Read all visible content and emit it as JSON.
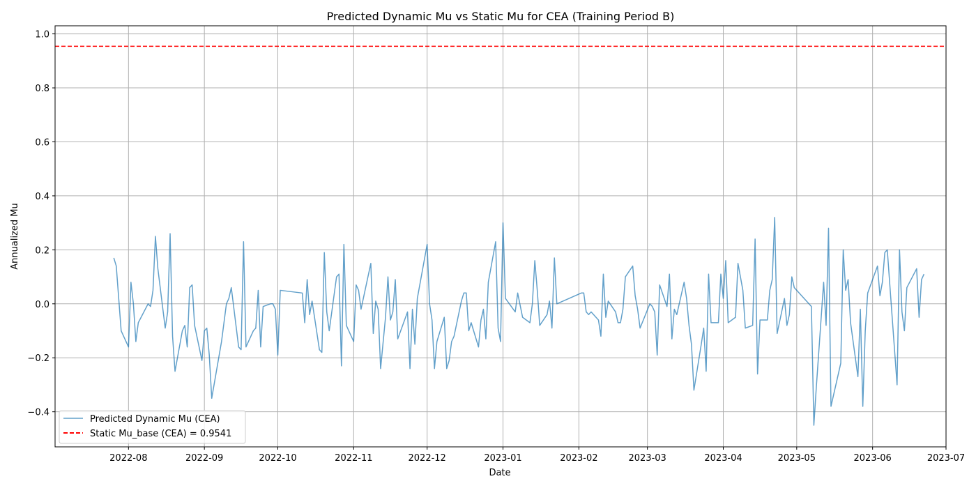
{
  "chart_data": {
    "type": "line",
    "title": "Predicted Dynamic Mu vs Static Mu for CEA (Training Period B)",
    "xlabel": "Date",
    "ylabel": "Annualized Mu",
    "xlim": [
      "2022-07-02",
      "2023-07-01"
    ],
    "ylim": [
      -0.53,
      1.03
    ],
    "grid": true,
    "legend_position": "lower-left",
    "x_ticks": [
      "2022-08",
      "2022-09",
      "2022-10",
      "2022-11",
      "2022-12",
      "2023-01",
      "2023-02",
      "2023-03",
      "2023-04",
      "2023-05",
      "2023-06",
      "2023-07"
    ],
    "y_ticks": [
      "−0.4",
      "−0.2",
      "0.0",
      "0.2",
      "0.4",
      "0.6",
      "0.8",
      "1.0"
    ],
    "y_tick_values": [
      -0.4,
      -0.2,
      0.0,
      0.2,
      0.4,
      0.6,
      0.8,
      1.0
    ],
    "series": [
      {
        "name": "Predicted Dynamic Mu (CEA)",
        "color": "#1f77b4",
        "style": "solid",
        "points": [
          [
            "2022-07-26",
            0.17
          ],
          [
            "2022-07-27",
            0.14
          ],
          [
            "2022-07-29",
            -0.1
          ],
          [
            "2022-08-01",
            -0.16
          ],
          [
            "2022-08-02",
            0.08
          ],
          [
            "2022-08-03",
            0.0
          ],
          [
            "2022-08-04",
            -0.14
          ],
          [
            "2022-08-05",
            -0.07
          ],
          [
            "2022-08-09",
            -0.0
          ],
          [
            "2022-08-10",
            -0.01
          ],
          [
            "2022-08-11",
            0.05
          ],
          [
            "2022-08-12",
            0.25
          ],
          [
            "2022-08-13",
            0.13
          ],
          [
            "2022-08-16",
            -0.09
          ],
          [
            "2022-08-17",
            -0.03
          ],
          [
            "2022-08-18",
            0.26
          ],
          [
            "2022-08-19",
            -0.12
          ],
          [
            "2022-08-20",
            -0.25
          ],
          [
            "2022-08-23",
            -0.1
          ],
          [
            "2022-08-24",
            -0.08
          ],
          [
            "2022-08-25",
            -0.16
          ],
          [
            "2022-08-26",
            0.06
          ],
          [
            "2022-08-27",
            0.07
          ],
          [
            "2022-08-28",
            -0.08
          ],
          [
            "2022-08-31",
            -0.21
          ],
          [
            "2022-09-01",
            -0.1
          ],
          [
            "2022-09-02",
            -0.09
          ],
          [
            "2022-09-03",
            -0.19
          ],
          [
            "2022-09-04",
            -0.35
          ],
          [
            "2022-09-08",
            -0.14
          ],
          [
            "2022-09-10",
            0.0
          ],
          [
            "2022-09-11",
            0.02
          ],
          [
            "2022-09-12",
            0.06
          ],
          [
            "2022-09-15",
            -0.16
          ],
          [
            "2022-09-16",
            -0.17
          ],
          [
            "2022-09-17",
            0.23
          ],
          [
            "2022-09-18",
            -0.16
          ],
          [
            "2022-09-21",
            -0.1
          ],
          [
            "2022-09-22",
            -0.09
          ],
          [
            "2022-09-23",
            0.05
          ],
          [
            "2022-09-24",
            -0.16
          ],
          [
            "2022-09-25",
            -0.01
          ],
          [
            "2022-09-28",
            0.0
          ],
          [
            "2022-09-29",
            0.0
          ],
          [
            "2022-09-30",
            -0.02
          ],
          [
            "2022-10-01",
            -0.19
          ],
          [
            "2022-10-02",
            0.05
          ],
          [
            "2022-10-11",
            0.04
          ],
          [
            "2022-10-12",
            -0.07
          ],
          [
            "2022-10-13",
            0.09
          ],
          [
            "2022-10-14",
            -0.04
          ],
          [
            "2022-10-15",
            0.01
          ],
          [
            "2022-10-16",
            -0.05
          ],
          [
            "2022-10-18",
            -0.17
          ],
          [
            "2022-10-19",
            -0.18
          ],
          [
            "2022-10-20",
            0.19
          ],
          [
            "2022-10-21",
            -0.03
          ],
          [
            "2022-10-22",
            -0.1
          ],
          [
            "2022-10-25",
            0.1
          ],
          [
            "2022-10-26",
            0.11
          ],
          [
            "2022-10-27",
            -0.23
          ],
          [
            "2022-10-28",
            0.22
          ],
          [
            "2022-10-29",
            -0.08
          ],
          [
            "2022-11-01",
            -0.14
          ],
          [
            "2022-11-02",
            0.07
          ],
          [
            "2022-11-03",
            0.05
          ],
          [
            "2022-11-04",
            -0.02
          ],
          [
            "2022-11-08",
            0.15
          ],
          [
            "2022-11-09",
            -0.11
          ],
          [
            "2022-11-10",
            0.01
          ],
          [
            "2022-11-11",
            -0.02
          ],
          [
            "2022-11-12",
            -0.24
          ],
          [
            "2022-11-14",
            -0.05
          ],
          [
            "2022-11-15",
            0.1
          ],
          [
            "2022-11-16",
            -0.06
          ],
          [
            "2022-11-17",
            -0.03
          ],
          [
            "2022-11-18",
            0.09
          ],
          [
            "2022-11-19",
            -0.13
          ],
          [
            "2022-11-23",
            -0.03
          ],
          [
            "2022-11-24",
            -0.24
          ],
          [
            "2022-11-25",
            -0.02
          ],
          [
            "2022-11-26",
            -0.15
          ],
          [
            "2022-11-27",
            0.02
          ],
          [
            "2022-12-01",
            0.22
          ],
          [
            "2022-12-02",
            0.0
          ],
          [
            "2022-12-03",
            -0.06
          ],
          [
            "2022-12-04",
            -0.24
          ],
          [
            "2022-12-05",
            -0.14
          ],
          [
            "2022-12-08",
            -0.05
          ],
          [
            "2022-12-09",
            -0.24
          ],
          [
            "2022-12-10",
            -0.21
          ],
          [
            "2022-12-11",
            -0.14
          ],
          [
            "2022-12-12",
            -0.12
          ],
          [
            "2022-12-15",
            0.01
          ],
          [
            "2022-12-16",
            0.04
          ],
          [
            "2022-12-17",
            0.04
          ],
          [
            "2022-12-18",
            -0.1
          ],
          [
            "2022-12-19",
            -0.07
          ],
          [
            "2022-12-22",
            -0.16
          ],
          [
            "2022-12-23",
            -0.06
          ],
          [
            "2022-12-24",
            -0.02
          ],
          [
            "2022-12-25",
            -0.13
          ],
          [
            "2022-12-26",
            0.08
          ],
          [
            "2022-12-29",
            0.23
          ],
          [
            "2022-12-30",
            -0.09
          ],
          [
            "2022-12-31",
            -0.14
          ],
          [
            "2023-01-01",
            0.3
          ],
          [
            "2023-01-02",
            0.02
          ],
          [
            "2023-01-06",
            -0.03
          ],
          [
            "2023-01-07",
            0.04
          ],
          [
            "2023-01-09",
            -0.05
          ],
          [
            "2023-01-12",
            -0.07
          ],
          [
            "2023-01-13",
            0.0
          ],
          [
            "2023-01-14",
            0.16
          ],
          [
            "2023-01-15",
            0.05
          ],
          [
            "2023-01-16",
            -0.08
          ],
          [
            "2023-01-19",
            -0.04
          ],
          [
            "2023-01-20",
            0.01
          ],
          [
            "2023-01-21",
            -0.09
          ],
          [
            "2023-01-22",
            0.17
          ],
          [
            "2023-01-23",
            0.0
          ],
          [
            "2023-02-02",
            0.04
          ],
          [
            "2023-02-03",
            0.04
          ],
          [
            "2023-02-04",
            -0.03
          ],
          [
            "2023-02-05",
            -0.04
          ],
          [
            "2023-02-06",
            -0.03
          ],
          [
            "2023-02-09",
            -0.06
          ],
          [
            "2023-02-10",
            -0.12
          ],
          [
            "2023-02-11",
            0.11
          ],
          [
            "2023-02-12",
            -0.05
          ],
          [
            "2023-02-13",
            0.01
          ],
          [
            "2023-02-16",
            -0.03
          ],
          [
            "2023-02-17",
            -0.07
          ],
          [
            "2023-02-18",
            -0.07
          ],
          [
            "2023-02-19",
            -0.02
          ],
          [
            "2023-02-20",
            0.1
          ],
          [
            "2023-02-23",
            0.14
          ],
          [
            "2023-02-24",
            0.03
          ],
          [
            "2023-02-25",
            -0.02
          ],
          [
            "2023-02-26",
            -0.09
          ],
          [
            "2023-03-02",
            0.0
          ],
          [
            "2023-03-03",
            -0.01
          ],
          [
            "2023-03-04",
            -0.03
          ],
          [
            "2023-03-05",
            -0.19
          ],
          [
            "2023-03-06",
            0.07
          ],
          [
            "2023-03-09",
            -0.01
          ],
          [
            "2023-03-10",
            0.11
          ],
          [
            "2023-03-11",
            -0.13
          ],
          [
            "2023-03-12",
            -0.02
          ],
          [
            "2023-03-13",
            -0.04
          ],
          [
            "2023-03-16",
            0.08
          ],
          [
            "2023-03-17",
            0.02
          ],
          [
            "2023-03-18",
            -0.08
          ],
          [
            "2023-03-19",
            -0.15
          ],
          [
            "2023-03-20",
            -0.32
          ],
          [
            "2023-03-23",
            -0.15
          ],
          [
            "2023-03-24",
            -0.09
          ],
          [
            "2023-03-25",
            -0.25
          ],
          [
            "2023-03-26",
            0.11
          ],
          [
            "2023-03-27",
            -0.07
          ],
          [
            "2023-03-30",
            -0.07
          ],
          [
            "2023-03-31",
            0.11
          ],
          [
            "2023-04-01",
            0.02
          ],
          [
            "2023-04-02",
            0.16
          ],
          [
            "2023-04-03",
            -0.07
          ],
          [
            "2023-04-06",
            -0.05
          ],
          [
            "2023-04-07",
            0.15
          ],
          [
            "2023-04-09",
            0.05
          ],
          [
            "2023-04-10",
            -0.09
          ],
          [
            "2023-04-13",
            -0.08
          ],
          [
            "2023-04-14",
            0.24
          ],
          [
            "2023-04-15",
            -0.26
          ],
          [
            "2023-04-16",
            -0.06
          ],
          [
            "2023-04-19",
            -0.06
          ],
          [
            "2023-04-20",
            0.05
          ],
          [
            "2023-04-21",
            0.09
          ],
          [
            "2023-04-22",
            0.32
          ],
          [
            "2023-04-23",
            -0.11
          ],
          [
            "2023-04-26",
            0.02
          ],
          [
            "2023-04-27",
            -0.08
          ],
          [
            "2023-04-28",
            -0.04
          ],
          [
            "2023-04-29",
            0.1
          ],
          [
            "2023-04-30",
            0.06
          ],
          [
            "2023-05-07",
            -0.01
          ],
          [
            "2023-05-08",
            -0.45
          ],
          [
            "2023-05-09",
            -0.31
          ],
          [
            "2023-05-12",
            0.08
          ],
          [
            "2023-05-13",
            -0.08
          ],
          [
            "2023-05-14",
            0.28
          ],
          [
            "2023-05-15",
            -0.38
          ],
          [
            "2023-05-19",
            -0.22
          ],
          [
            "2023-05-20",
            0.2
          ],
          [
            "2023-05-21",
            0.05
          ],
          [
            "2023-05-22",
            0.09
          ],
          [
            "2023-05-23",
            -0.07
          ],
          [
            "2023-05-26",
            -0.27
          ],
          [
            "2023-05-27",
            -0.02
          ],
          [
            "2023-05-28",
            -0.38
          ],
          [
            "2023-05-29",
            -0.1
          ],
          [
            "2023-05-30",
            0.04
          ],
          [
            "2023-06-03",
            0.14
          ],
          [
            "2023-06-04",
            0.03
          ],
          [
            "2023-06-05",
            0.08
          ],
          [
            "2023-06-06",
            0.19
          ],
          [
            "2023-06-07",
            0.2
          ],
          [
            "2023-06-11",
            -0.3
          ],
          [
            "2023-06-12",
            0.2
          ],
          [
            "2023-06-13",
            -0.03
          ],
          [
            "2023-06-14",
            -0.1
          ],
          [
            "2023-06-15",
            0.06
          ],
          [
            "2023-06-19",
            0.13
          ],
          [
            "2023-06-20",
            -0.05
          ],
          [
            "2023-06-21",
            0.09
          ],
          [
            "2023-06-22",
            0.11
          ]
        ]
      },
      {
        "name": "Static Mu_base (CEA) = 0.9541",
        "color": "#ff0000",
        "style": "dashed",
        "value": 0.9541
      }
    ]
  }
}
